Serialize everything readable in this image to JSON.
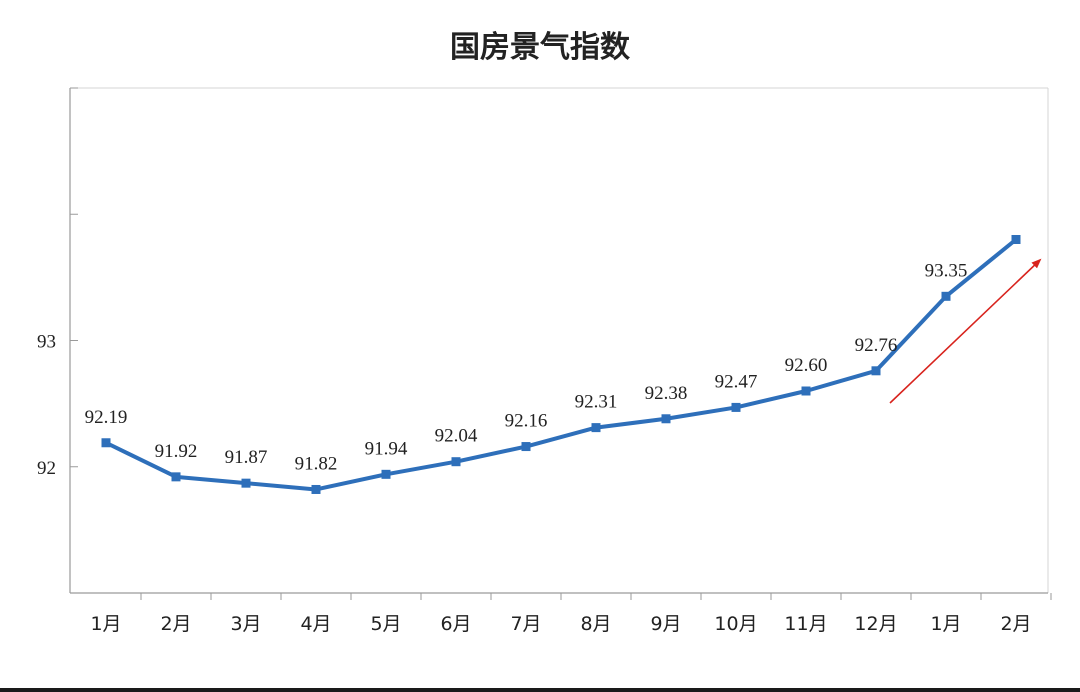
{
  "chart_data": {
    "type": "line",
    "title": "国房景气指数",
    "xlabel": "",
    "ylabel": "",
    "categories": [
      "1月",
      "2月",
      "3月",
      "4月",
      "5月",
      "6月",
      "7月",
      "8月",
      "9月",
      "10月",
      "11月",
      "12月",
      "1月",
      "2月"
    ],
    "series": [
      {
        "values": [
          92.19,
          91.92,
          91.87,
          91.82,
          91.94,
          92.04,
          92.16,
          92.31,
          92.38,
          92.47,
          92.6,
          92.76,
          93.35,
          93.8
        ],
        "labels": [
          "92.19",
          "91.92",
          "91.87",
          "91.82",
          "91.94",
          "92.04",
          "92.16",
          "92.31",
          "92.38",
          "92.47",
          "92.60",
          "92.76",
          "93.35",
          ""
        ]
      }
    ],
    "yticks": [
      {
        "value": 91,
        "label": ""
      },
      {
        "value": 92,
        "label": "92"
      },
      {
        "value": 93,
        "label": "93"
      },
      {
        "value": 94,
        "label": ""
      },
      {
        "value": 95,
        "label": ""
      }
    ],
    "ylim": [
      91,
      95
    ],
    "grid": false,
    "legend": "none",
    "colors": {
      "line": "#2e6fba",
      "arrow": "#d8231d",
      "axis": "#9a9a9a",
      "text": "#222222"
    },
    "annotations": [
      {
        "type": "arrow",
        "description": "trend-up"
      }
    ]
  }
}
